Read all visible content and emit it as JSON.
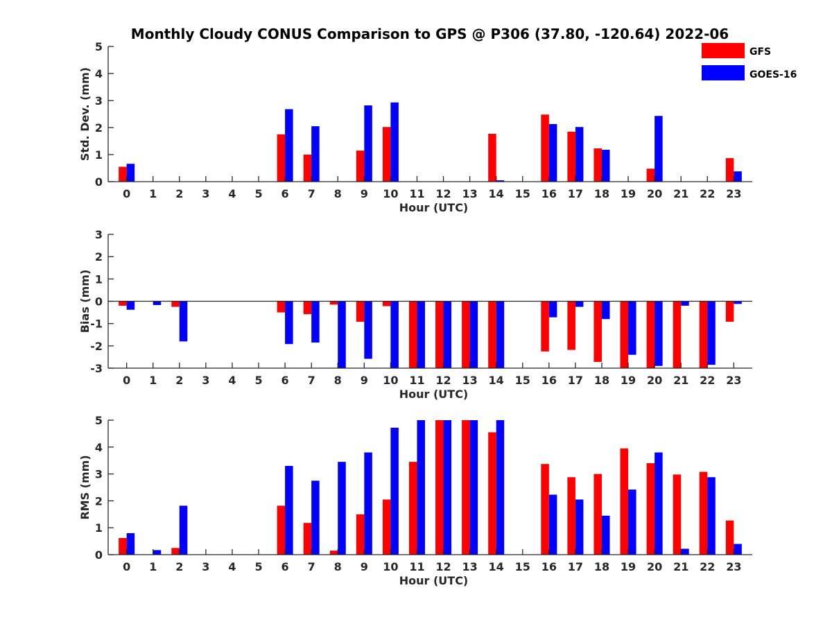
{
  "figure": {
    "title": "Monthly Cloudy CONUS Comparison to GPS @ P306 (37.80, -120.64) 2022-06"
  },
  "legend": {
    "items": [
      {
        "label": "GFS",
        "color": "#ff0000"
      },
      {
        "label": "GOES-16",
        "color": "#0000ff"
      }
    ]
  },
  "chart_data": [
    {
      "type": "bar",
      "ylabel": "Std. Dev. (mm)",
      "xlabel": "Hour (UTC)",
      "categories": [
        "0",
        "1",
        "2",
        "3",
        "4",
        "5",
        "6",
        "7",
        "8",
        "9",
        "10",
        "11",
        "12",
        "13",
        "14",
        "15",
        "16",
        "17",
        "18",
        "19",
        "20",
        "21",
        "22",
        "23"
      ],
      "ylim": [
        0,
        5
      ],
      "yticks": [
        0,
        1,
        2,
        3,
        4,
        5
      ],
      "series": [
        {
          "name": "GFS",
          "color": "#ff0000",
          "values": [
            0.55,
            0,
            0,
            0,
            0,
            0,
            1.75,
            1.0,
            0,
            1.15,
            2.02,
            0,
            0,
            0,
            1.77,
            0,
            2.48,
            1.85,
            1.23,
            0,
            0.48,
            0,
            0,
            0.87
          ]
        },
        {
          "name": "GOES-16",
          "color": "#0000ff",
          "values": [
            0.66,
            0,
            0,
            0,
            0,
            0,
            2.68,
            2.05,
            0,
            2.82,
            2.93,
            0,
            0,
            0,
            0.05,
            0,
            2.13,
            2.02,
            1.18,
            0,
            2.43,
            0,
            0,
            0.38
          ]
        }
      ]
    },
    {
      "type": "bar",
      "ylabel": "Bias (mm)",
      "xlabel": "Hour (UTC)",
      "categories": [
        "0",
        "1",
        "2",
        "3",
        "4",
        "5",
        "6",
        "7",
        "8",
        "9",
        "10",
        "11",
        "12",
        "13",
        "14",
        "15",
        "16",
        "17",
        "18",
        "19",
        "20",
        "21",
        "22",
        "23"
      ],
      "ylim": [
        -3,
        3
      ],
      "yticks": [
        -3,
        -2,
        -1,
        0,
        1,
        2,
        3
      ],
      "series": [
        {
          "name": "GFS",
          "color": "#ff0000",
          "values": [
            -0.2,
            0,
            -0.25,
            0,
            0,
            0,
            -0.5,
            -0.58,
            -0.15,
            -0.92,
            -0.22,
            -3.0,
            -3.0,
            -3.0,
            -3.0,
            0,
            -2.25,
            -2.18,
            -2.72,
            -3.0,
            -3.0,
            -3.0,
            -3.0,
            -0.92
          ]
        },
        {
          "name": "GOES-16",
          "color": "#0000ff",
          "values": [
            -0.38,
            -0.17,
            -1.8,
            0,
            0,
            0,
            -1.92,
            -1.85,
            -3.0,
            -2.58,
            -3.0,
            -3.0,
            -3.0,
            -3.0,
            -3.0,
            0,
            -0.72,
            -0.25,
            -0.8,
            -2.4,
            -2.9,
            -0.2,
            -2.85,
            -0.12
          ]
        }
      ]
    },
    {
      "type": "bar",
      "ylabel": "RMS (mm)",
      "xlabel": "Hour (UTC)",
      "categories": [
        "0",
        "1",
        "2",
        "3",
        "4",
        "5",
        "6",
        "7",
        "8",
        "9",
        "10",
        "11",
        "12",
        "13",
        "14",
        "15",
        "16",
        "17",
        "18",
        "19",
        "20",
        "21",
        "22",
        "23"
      ],
      "ylim": [
        0,
        5
      ],
      "yticks": [
        0,
        1,
        2,
        3,
        4,
        5
      ],
      "series": [
        {
          "name": "GFS",
          "color": "#ff0000",
          "values": [
            0.62,
            0,
            0.25,
            0,
            0,
            0,
            1.82,
            1.18,
            0.15,
            1.5,
            2.05,
            3.45,
            5.0,
            5.0,
            4.55,
            0,
            3.37,
            2.88,
            3.0,
            3.95,
            3.4,
            2.98,
            3.08,
            1.27
          ]
        },
        {
          "name": "GOES-16",
          "color": "#0000ff",
          "values": [
            0.8,
            0.17,
            1.82,
            0,
            0,
            0,
            3.3,
            2.75,
            3.45,
            3.8,
            4.72,
            5.0,
            5.0,
            5.0,
            5.0,
            0,
            2.23,
            2.05,
            1.45,
            2.42,
            3.8,
            0.22,
            2.88,
            0.4
          ]
        }
      ]
    }
  ]
}
